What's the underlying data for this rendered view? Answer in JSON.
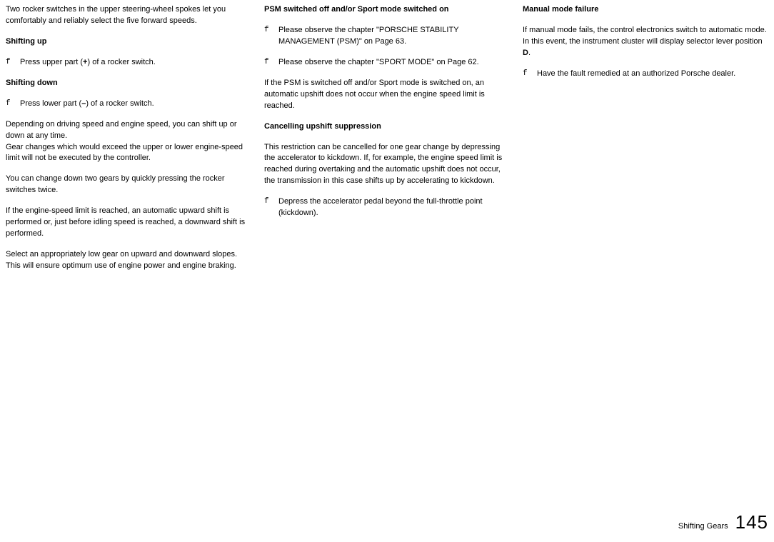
{
  "col1": {
    "intro": "Two rocker switches in the upper steering-wheel spokes let you comfortably and reliably select the five forward speeds.",
    "h1": "Shifting up",
    "b1_pre": "Press upper part (",
    "b1_bold": "+",
    "b1_post": ") of a rocker switch.",
    "h2": "Shifting down",
    "b2_pre": "Press lower part (",
    "b2_bold": "–",
    "b2_post": ") of a rocker switch.",
    "p3a": "Depending on driving speed and engine speed, you can shift up or down at any time.",
    "p3b": "Gear changes which would exceed the upper or lower engine-speed limit will not be executed by the controller.",
    "p4": "You can change down two gears by quickly pressing the rocker switches twice.",
    "p5": "If the engine-speed limit is reached, an automatic upward shift is performed or, just before idling speed is reached, a downward shift is performed.",
    "p6a": "Select an appropriately low gear on upward and downward slopes.",
    "p6b": "This will ensure optimum use of engine power and engine braking."
  },
  "col2": {
    "h1": "PSM switched off and/or Sport mode switched on",
    "b1": "Please observe the chapter \"PORSCHE STABILITY MANAGEMENT (PSM)\" on Page 63.",
    "b2": "Please observe the chapter \"SPORT MODE\" on Page 62.",
    "p1": "If the PSM is switched off and/or Sport mode is switched on, an automatic upshift does not occur when the engine speed limit is reached.",
    "h2": "Cancelling upshift suppression",
    "p2": "This restriction can be cancelled for one gear change by depressing the accelerator to kickdown. If, for example, the engine speed limit is reached during overtaking and the automatic upshift does not occur, the transmission in this case shifts up by accelerating to kickdown.",
    "b3": "Depress the accelerator pedal beyond the full-throttle point (kickdown)."
  },
  "col3": {
    "h1": "Manual mode failure",
    "p1_pre": "If manual mode fails, the control electronics switch to automatic mode. In this event, the instrument cluster will display selector lever position ",
    "p1_bold": "D",
    "p1_post": ".",
    "b1": "Have the fault remedied at an authorized Porsche dealer."
  },
  "footer": {
    "label": "Shifting Gears",
    "page": "145"
  },
  "bullet_glyph": "f"
}
